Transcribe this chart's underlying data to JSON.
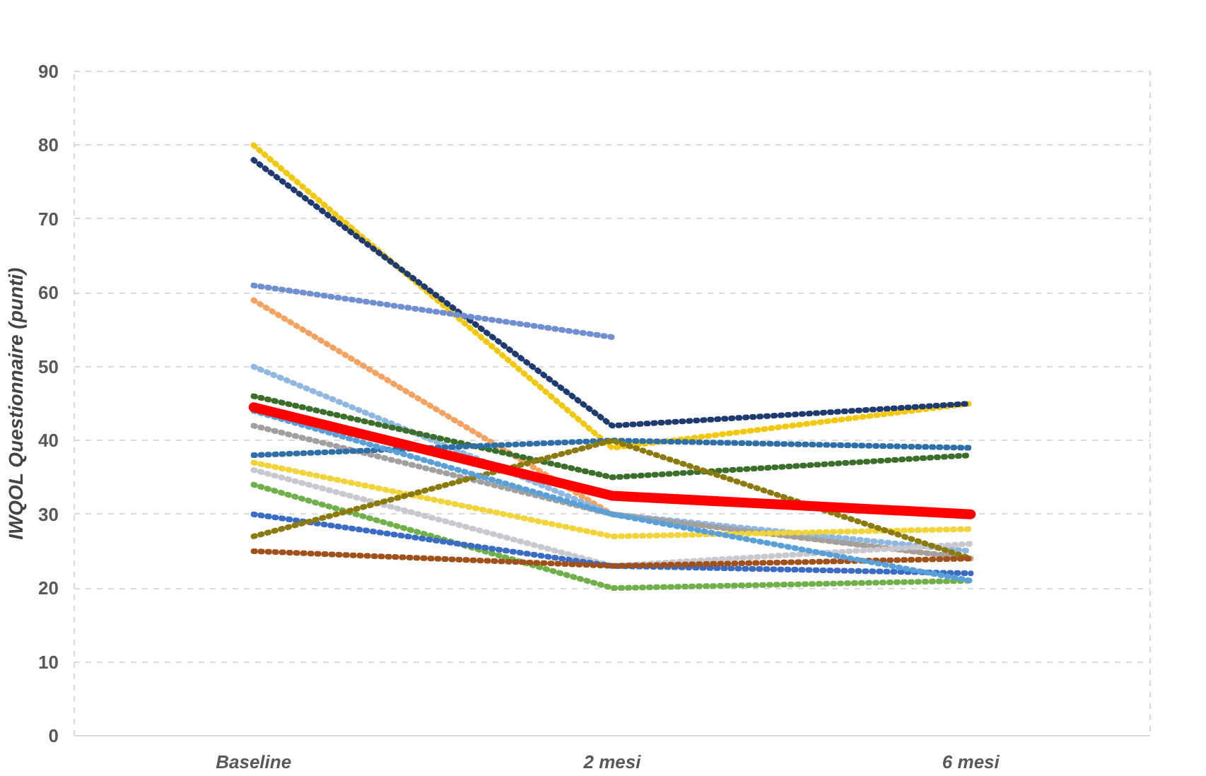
{
  "chart_data": {
    "type": "line",
    "ylabel": "IWQOL Questionnaire (punti)",
    "categories": [
      "Baseline",
      "2 mesi",
      "6 mesi"
    ],
    "ylim": [
      0,
      90
    ],
    "yticks": [
      0,
      10,
      20,
      30,
      40,
      50,
      60,
      70,
      80,
      90
    ],
    "grid": "y",
    "marker": "none",
    "line_style": "dotted",
    "series": [
      {
        "color": "#f2c80f",
        "values": [
          80,
          39,
          45
        ]
      },
      {
        "color": "#1f3a6e",
        "values": [
          78,
          42,
          45
        ]
      },
      {
        "color": "#6f8fd0",
        "values": [
          61,
          54,
          null
        ]
      },
      {
        "color": "#f4a261",
        "values": [
          59,
          30,
          24
        ]
      },
      {
        "color": "#8fb8e0",
        "values": [
          50,
          30,
          25
        ]
      },
      {
        "color": "#3b6e2a",
        "values": [
          46,
          35,
          38
        ]
      },
      {
        "color": "#a0a0a0",
        "values": [
          42,
          30,
          24
        ]
      },
      {
        "color": "#2f6fa8",
        "values": [
          38,
          40,
          39
        ]
      },
      {
        "color": "#f0d43a",
        "values": [
          37,
          27,
          28
        ]
      },
      {
        "color": "#c8c8d0",
        "values": [
          36,
          23,
          26
        ]
      },
      {
        "color": "#6fb04a",
        "values": [
          34,
          20,
          21
        ]
      },
      {
        "color": "#3a6cc4",
        "values": [
          30,
          23,
          22
        ]
      },
      {
        "color": "#8a7a10",
        "values": [
          27,
          40,
          24
        ]
      },
      {
        "color": "#a0501a",
        "values": [
          25,
          23,
          24
        ]
      },
      {
        "color": "#5aa0d8",
        "values": [
          44,
          30,
          21
        ]
      },
      {
        "color": "#ff0000",
        "values": [
          44.5,
          32.5,
          30
        ],
        "line_style": "solid"
      }
    ]
  }
}
